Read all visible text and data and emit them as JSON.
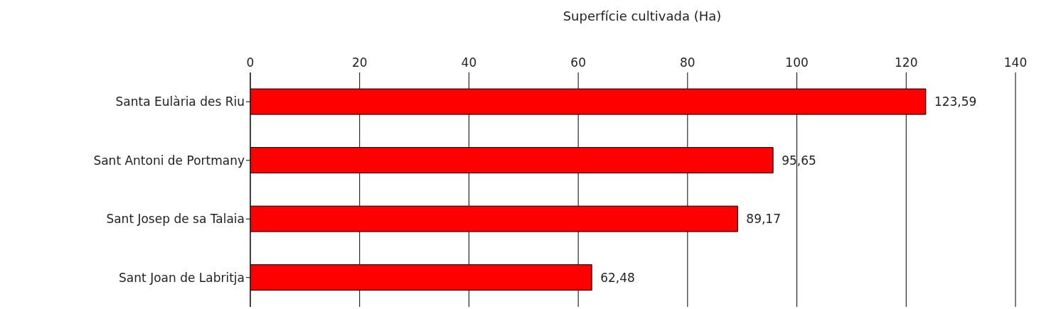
{
  "chart_data": {
    "type": "bar",
    "orientation": "horizontal",
    "xlabel": "Superfície cultivada (Ha)",
    "categories": [
      "Santa Eulària des Riu",
      "Sant Antoni de Portmany",
      "Sant Josep de sa Talaia",
      "Sant Joan de Labritja"
    ],
    "values": [
      123.59,
      95.65,
      89.17,
      62.48
    ],
    "value_labels": [
      "123,59",
      "95,65",
      "89,17",
      "62,48"
    ],
    "color": "#ff0000",
    "xlim": [
      0,
      140
    ],
    "xticks": [
      0,
      20,
      40,
      60,
      80,
      100,
      120,
      140
    ],
    "grid": "x"
  }
}
